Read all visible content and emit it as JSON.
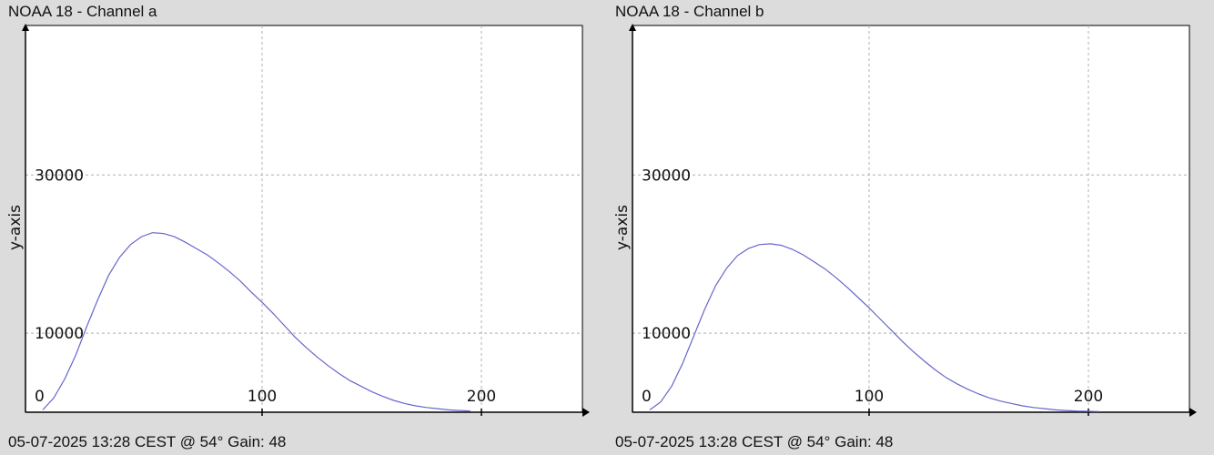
{
  "chart_data": [
    {
      "type": "line",
      "title": "NOAA 18 - Channel a",
      "footer": "05-07-2025 13:28 CEST @ 54° Gain: 48",
      "xlabel": "",
      "ylabel": "y-axis",
      "xlim": [
        0,
        250
      ],
      "ylim": [
        0,
        48000
      ],
      "x_ticks": [
        0,
        100,
        200
      ],
      "y_ticks": [
        10000,
        30000
      ],
      "grid": true,
      "series_color": "#6666cc",
      "series": [
        {
          "x": [
            0,
            5,
            10,
            15,
            20,
            25,
            30,
            35,
            40,
            45,
            50,
            55,
            60,
            65,
            70,
            75,
            80,
            85,
            90,
            95,
            100,
            105,
            110,
            115,
            120,
            125,
            130,
            135,
            140,
            145,
            150,
            155,
            160,
            165,
            170,
            175,
            180,
            185,
            190,
            195
          ],
          "y": [
            300,
            1800,
            4200,
            7200,
            10800,
            14200,
            17300,
            19600,
            21200,
            22200,
            22700,
            22600,
            22200,
            21500,
            20700,
            19900,
            18900,
            17800,
            16600,
            15200,
            13900,
            12500,
            11000,
            9500,
            8200,
            7000,
            5900,
            4900,
            4000,
            3300,
            2600,
            2000,
            1500,
            1100,
            800,
            600,
            450,
            300,
            220,
            150
          ]
        }
      ]
    },
    {
      "type": "line",
      "title": "NOAA 18 - Channel b",
      "footer": "05-07-2025 13:28 CEST @ 54° Gain: 48",
      "xlabel": "",
      "ylabel": "y-axis",
      "xlim": [
        0,
        250
      ],
      "ylim": [
        0,
        48000
      ],
      "x_ticks": [
        0,
        100,
        200
      ],
      "y_ticks": [
        10000,
        30000
      ],
      "grid": true,
      "series_color": "#6666cc",
      "series": [
        {
          "x": [
            0,
            5,
            10,
            15,
            20,
            25,
            30,
            35,
            40,
            45,
            50,
            55,
            60,
            65,
            70,
            75,
            80,
            85,
            90,
            95,
            100,
            105,
            110,
            115,
            120,
            125,
            130,
            135,
            140,
            145,
            150,
            155,
            160,
            165,
            170,
            175,
            180,
            185,
            190,
            195,
            200,
            205
          ],
          "y": [
            300,
            1300,
            3300,
            6200,
            9600,
            13000,
            16000,
            18200,
            19800,
            20700,
            21200,
            21300,
            21100,
            20600,
            19900,
            19000,
            18100,
            17000,
            15800,
            14500,
            13200,
            11800,
            10400,
            9000,
            7700,
            6500,
            5400,
            4400,
            3600,
            2900,
            2300,
            1800,
            1400,
            1100,
            800,
            600,
            450,
            300,
            220,
            150,
            120,
            80
          ]
        }
      ]
    }
  ]
}
